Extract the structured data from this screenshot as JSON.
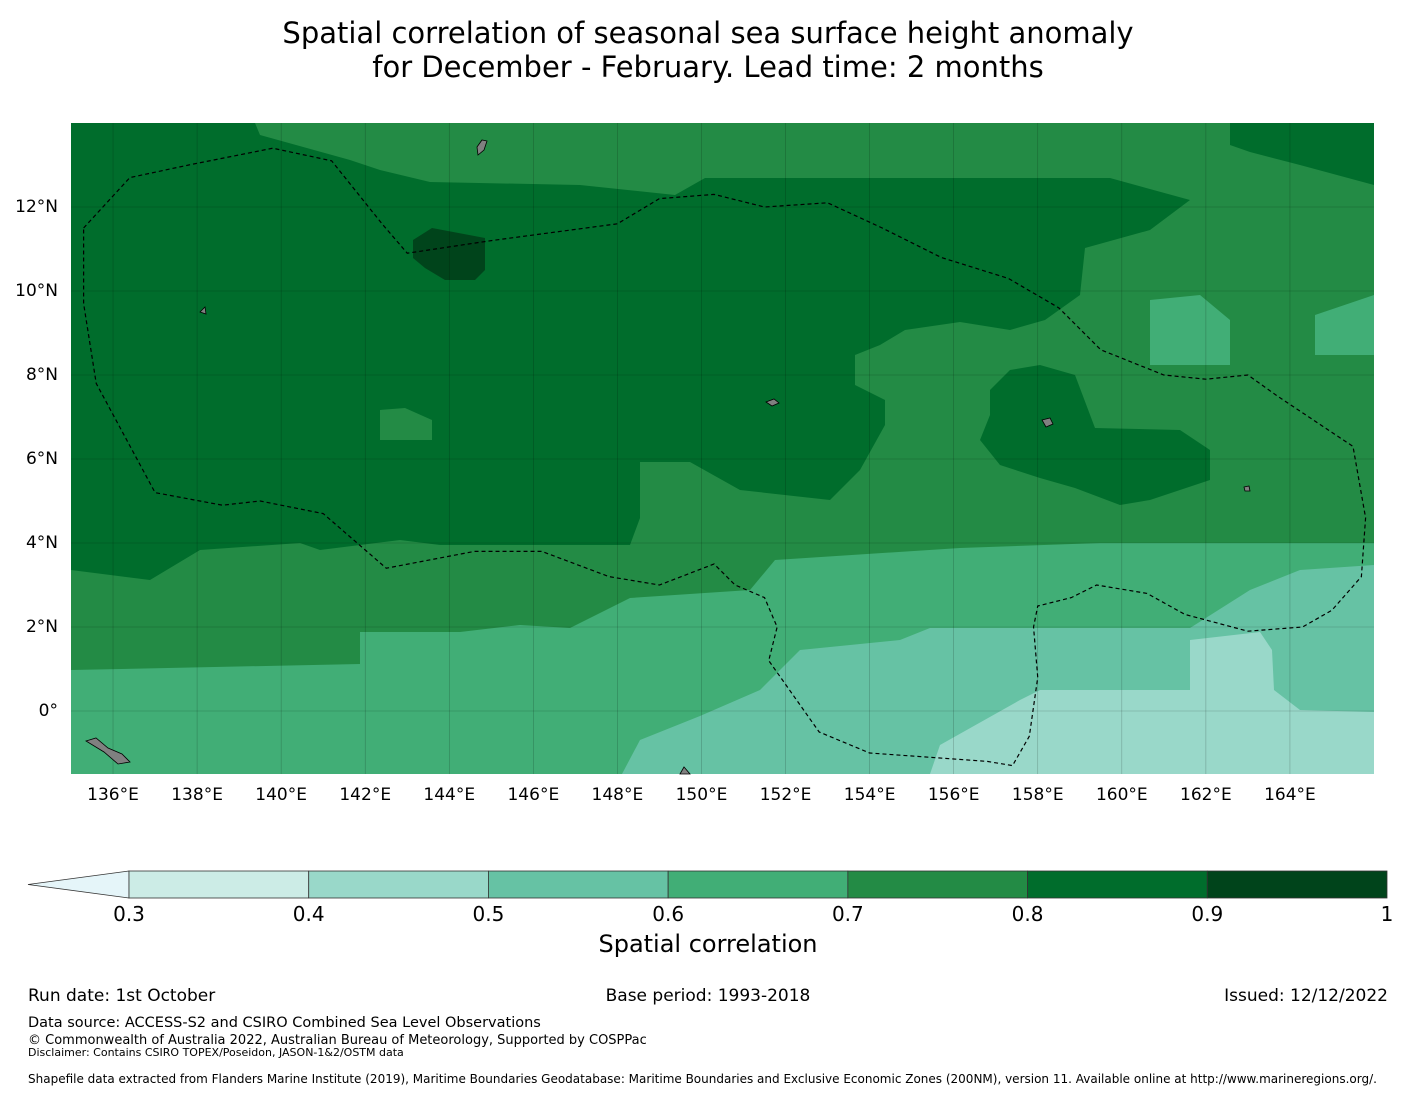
{
  "title": {
    "line1": "Spatial correlation of seasonal sea surface height anomaly",
    "line2": "for December - February. Lead time: 2 months"
  },
  "map": {
    "lon_ticks": [
      "136°E",
      "138°E",
      "140°E",
      "142°E",
      "144°E",
      "146°E",
      "148°E",
      "150°E",
      "152°E",
      "154°E",
      "156°E",
      "158°E",
      "160°E",
      "162°E",
      "164°E"
    ],
    "lon_values": [
      136,
      138,
      140,
      142,
      144,
      146,
      148,
      150,
      152,
      154,
      156,
      158,
      160,
      162,
      164
    ],
    "lat_ticks": [
      "12°N",
      "10°N",
      "8°N",
      "6°N",
      "4°N",
      "2°N",
      "0°"
    ],
    "lat_values": [
      12,
      10,
      8,
      6,
      4,
      2,
      0
    ],
    "lon_range": [
      135,
      166
    ],
    "lat_range": [
      -1.5,
      14
    ],
    "land_color": "#808080",
    "eez_boundaries": [
      [
        [
          135.3,
          11.5
        ],
        [
          136.4,
          12.7
        ],
        [
          137.8,
          13.0
        ],
        [
          139.8,
          13.4
        ],
        [
          141.2,
          13.1
        ],
        [
          142.4,
          11.6
        ],
        [
          143.0,
          10.9
        ],
        [
          145.0,
          11.2
        ],
        [
          148.0,
          11.6
        ],
        [
          149.0,
          12.2
        ],
        [
          150.3,
          12.3
        ],
        [
          151.5,
          12.0
        ],
        [
          153.0,
          12.1
        ],
        [
          154.3,
          11.5
        ],
        [
          155.7,
          10.8
        ],
        [
          157.3,
          10.3
        ],
        [
          158.5,
          9.6
        ],
        [
          159.5,
          8.6
        ],
        [
          161.0,
          8.0
        ],
        [
          162.0,
          7.9
        ],
        [
          163.0,
          8.0
        ],
        [
          163.7,
          7.5
        ],
        [
          165.5,
          6.3
        ],
        [
          165.8,
          4.6
        ],
        [
          165.7,
          3.2
        ],
        [
          165.0,
          2.4
        ],
        [
          164.3,
          2.0
        ],
        [
          163.0,
          1.9
        ],
        [
          161.5,
          2.3
        ],
        [
          160.6,
          2.8
        ],
        [
          159.4,
          3.0
        ],
        [
          158.8,
          2.7
        ],
        [
          158.0,
          2.5
        ],
        [
          157.9,
          2.0
        ],
        [
          158.0,
          0.8
        ],
        [
          157.8,
          -0.6
        ],
        [
          157.4,
          -1.3
        ],
        [
          156.8,
          -1.2
        ],
        [
          155.4,
          -1.1
        ],
        [
          154.0,
          -1.0
        ],
        [
          152.8,
          -0.5
        ],
        [
          151.6,
          1.2
        ],
        [
          151.8,
          2.0
        ],
        [
          151.5,
          2.7
        ],
        [
          150.8,
          3.0
        ],
        [
          150.3,
          3.5
        ],
        [
          149.0,
          3.0
        ],
        [
          147.8,
          3.2
        ],
        [
          146.2,
          3.8
        ],
        [
          144.6,
          3.8
        ],
        [
          142.5,
          3.4
        ],
        [
          141.0,
          4.7
        ],
        [
          139.5,
          5.0
        ],
        [
          138.6,
          4.9
        ],
        [
          137.0,
          5.2
        ],
        [
          135.6,
          7.8
        ],
        [
          135.3,
          9.7
        ],
        [
          135.3,
          11.5
        ]
      ]
    ]
  },
  "colorbar": {
    "ticks": [
      "0.3",
      "0.4",
      "0.5",
      "0.6",
      "0.7",
      "0.8",
      "0.9",
      "1"
    ],
    "values": [
      0.3,
      0.4,
      0.5,
      0.6,
      0.7,
      0.8,
      0.9,
      1.0
    ],
    "colors": [
      "#ccece6",
      "#99d8c9",
      "#66c2a4",
      "#41ae76",
      "#238b45",
      "#006d2c",
      "#00441b"
    ],
    "extend_color": "#e5f5f9",
    "label": "Spatial correlation"
  },
  "footer": {
    "run_date": "Run date: 1st October",
    "base_period": "Base period: 1993-2018",
    "issued": "Issued: 12/12/2022",
    "data_source": "Data source: ACCESS-S2 and CSIRO Combined Sea Level Observations",
    "copyright": "© Commonwealth of Australia 2022, Australian Bureau of Meteorology, Supported by COSPPac",
    "disclaimer": "Disclaimer: Contains CSIRO TOPEX/Poseidon, JASON-1&2/OSTM data",
    "shapefile": "Shapefile data extracted from Flanders Marine Institute (2019), Maritime Boundaries Geodatabase: Maritime Boundaries and Exclusive Economic Zones (200NM), version 11. Available online at http://www.marineregions.org/."
  }
}
